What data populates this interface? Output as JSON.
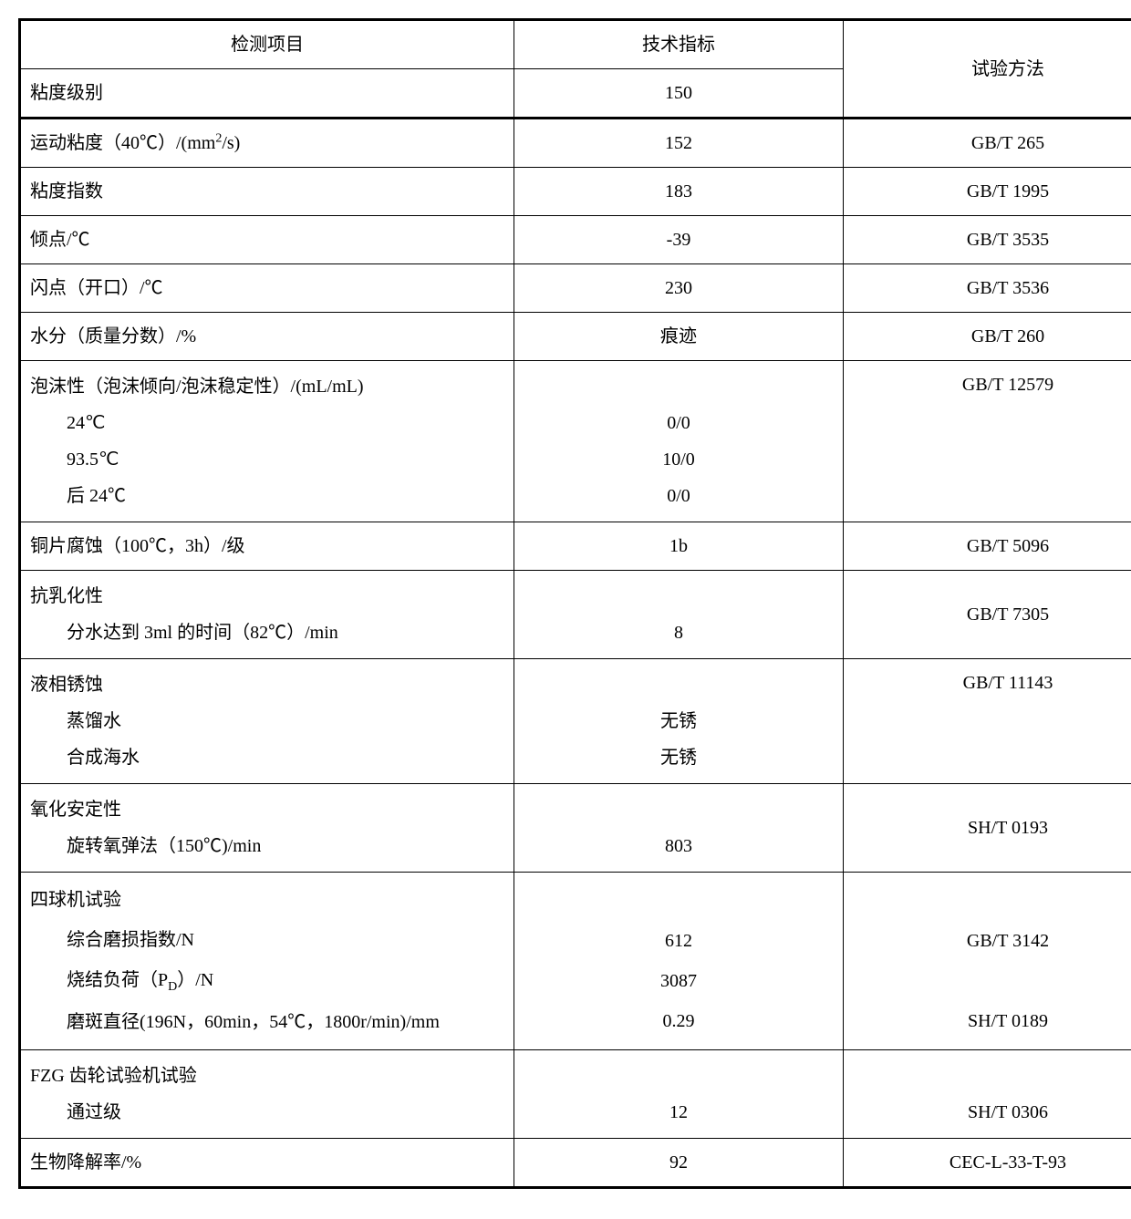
{
  "header": {
    "col1": "检测项目",
    "col2": "技术指标",
    "col3": "试验方法"
  },
  "r1": {
    "label": "粘度级别",
    "value": "150"
  },
  "r2": {
    "label": "运动粘度（40℃）/(mm²/s)",
    "value": "152",
    "method": "GB/T 265"
  },
  "r3": {
    "label": "粘度指数",
    "value": "183",
    "method": "GB/T 1995"
  },
  "r4": {
    "label": "倾点/℃",
    "value": "-39",
    "method": "GB/T 3535"
  },
  "r5": {
    "label": "闪点（开口）/℃",
    "value": "230",
    "method": "GB/T 3536"
  },
  "r6": {
    "label": "水分（质量分数）/%",
    "value": "痕迹",
    "method": "GB/T 260"
  },
  "r7": {
    "label_main": "泡沫性（泡沫倾向/泡沫稳定性）/(mL/mL)",
    "sub1": "24℃",
    "sub2": "93.5℃",
    "sub3": "后 24℃",
    "v1": "0/0",
    "v2": "10/0",
    "v3": "0/0",
    "method": "GB/T 12579"
  },
  "r8": {
    "label": "铜片腐蚀（100℃，3h）/级",
    "value": "1b",
    "method": "GB/T 5096"
  },
  "r9": {
    "label_main": "抗乳化性",
    "sub1": "分水达到 3ml 的时间（82℃）/min",
    "value": "8",
    "method": "GB/T 7305"
  },
  "r10": {
    "label_main": "液相锈蚀",
    "sub1": "蒸馏水",
    "sub2": "合成海水",
    "v1": "无锈",
    "v2": "无锈",
    "method": "GB/T 11143"
  },
  "r11": {
    "label_main": "氧化安定性",
    "sub1": "旋转氧弹法（150℃)/min",
    "value": "803",
    "method": "SH/T 0193"
  },
  "r12": {
    "label_main": "四球机试验",
    "sub1": "综合磨损指数/N",
    "sub2_pre": "烧结负荷（P",
    "sub2_sub": "D",
    "sub2_post": "）/N",
    "sub3": "磨斑直径(196N，60min，54℃，1800r/min)/mm",
    "v1": "612",
    "v2": "3087",
    "v3": "0.29",
    "method1": "GB/T 3142",
    "method2": "SH/T 0189"
  },
  "r13": {
    "label_main": "FZG 齿轮试验机试验",
    "sub1": "通过级",
    "value": "12",
    "method": "SH/T 0306"
  },
  "r14": {
    "label": "生物降解率/%",
    "value": "92",
    "method": "CEC-L-33-T-93"
  }
}
